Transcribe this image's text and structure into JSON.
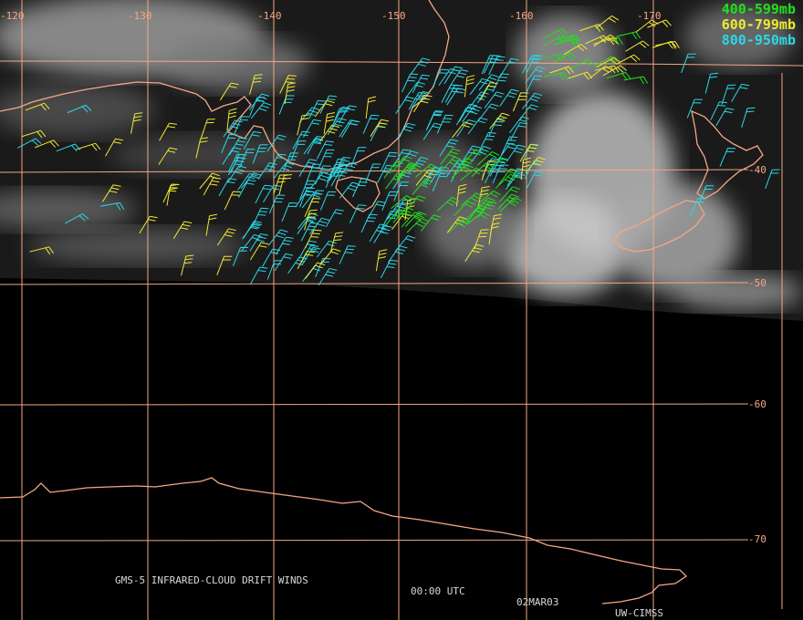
{
  "map": {
    "lon_labels": [
      "-120",
      "-130",
      "-140",
      "-150",
      "-160",
      "-170"
    ],
    "lat_labels": [
      "-40",
      "-50",
      "-60",
      "-70"
    ]
  },
  "legend": [
    {
      "label": "400-599mb",
      "color": "#22e01c"
    },
    {
      "label": "600-799mb",
      "color": "#f0e830"
    },
    {
      "label": "800-950mb",
      "color": "#2ad8e8"
    }
  ],
  "footer": {
    "product": "GMS-5 INFRARED-CLOUD DRIFT WINDS",
    "time": "00:00 UTC",
    "date": "02MAR03",
    "source": "UW-CIMSS"
  },
  "colors": {
    "gridline": "#f4a783",
    "coastline": "#f4a783",
    "background": "#000000"
  }
}
